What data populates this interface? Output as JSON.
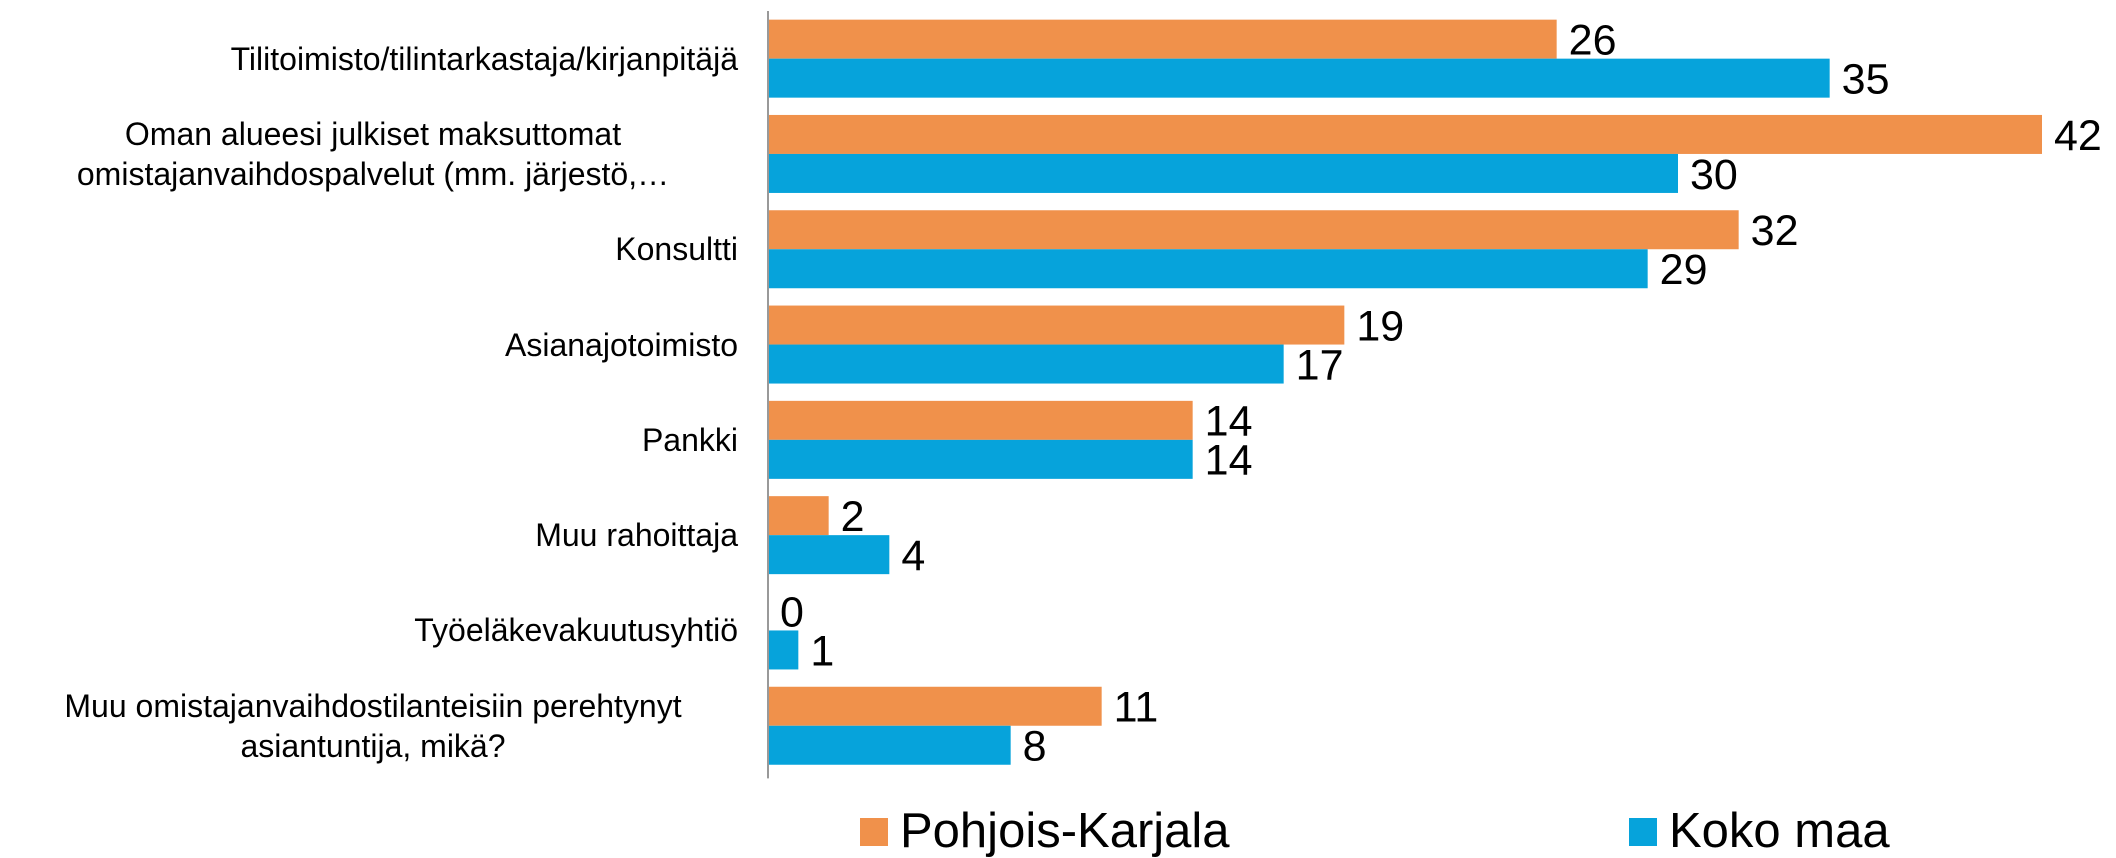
{
  "chart_data": {
    "type": "bar",
    "orientation": "horizontal",
    "categories": [
      "Tilitoimisto/tilintarkastaja/kirjanpitäjä",
      "Oman alueesi julkiset maksuttomat omistajanvaihdospalvelut (mm. järjestö,…",
      "Konsultti",
      "Asianajotoimisto",
      "Pankki",
      "Muu rahoittaja",
      "Työeläkevakuutusyhtiö",
      "Muu omistajanvaihdostilanteisiin perehtynyt asiantuntija, mikä?"
    ],
    "series": [
      {
        "name": "Pohjois-Karjala",
        "color": "#f0914b",
        "values": [
          26,
          42,
          32,
          19,
          14,
          2,
          0,
          11
        ]
      },
      {
        "name": "Koko maa",
        "color": "#06a3db",
        "values": [
          35,
          30,
          29,
          17,
          14,
          4,
          1,
          8
        ]
      }
    ],
    "legend": "bottom"
  }
}
